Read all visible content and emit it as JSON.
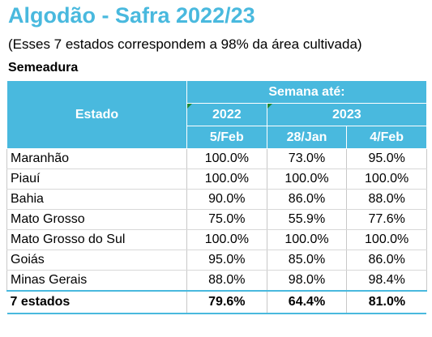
{
  "header": {
    "title": "Algodão - Safra 2022/23",
    "subtitle": "(Esses 7 estados correspondem a 98% da área cultivada)",
    "section": "Semeadura"
  },
  "table": {
    "state_header": "Estado",
    "week_header": "Semana até:",
    "years": [
      "2022",
      "2023"
    ],
    "dates": [
      "5/Feb",
      "28/Jan",
      "4/Feb"
    ],
    "rows": [
      {
        "state": "Maranhão",
        "values": [
          "100.0%",
          "73.0%",
          "95.0%"
        ]
      },
      {
        "state": "Piauí",
        "values": [
          "100.0%",
          "100.0%",
          "100.0%"
        ]
      },
      {
        "state": "Bahia",
        "values": [
          "90.0%",
          "86.0%",
          "88.0%"
        ]
      },
      {
        "state": "Mato Grosso",
        "values": [
          "75.0%",
          "55.9%",
          "77.6%"
        ]
      },
      {
        "state": "Mato Grosso do Sul",
        "values": [
          "100.0%",
          "100.0%",
          "100.0%"
        ]
      },
      {
        "state": "Goiás",
        "values": [
          "95.0%",
          "85.0%",
          "86.0%"
        ]
      },
      {
        "state": "Minas Gerais",
        "values": [
          "88.0%",
          "98.0%",
          "98.4%"
        ]
      }
    ],
    "total": {
      "state": "7 estados",
      "values": [
        "79.6%",
        "64.4%",
        "81.0%"
      ]
    }
  },
  "colors": {
    "accent": "#49b9de",
    "marker": "#1a8a3a"
  }
}
